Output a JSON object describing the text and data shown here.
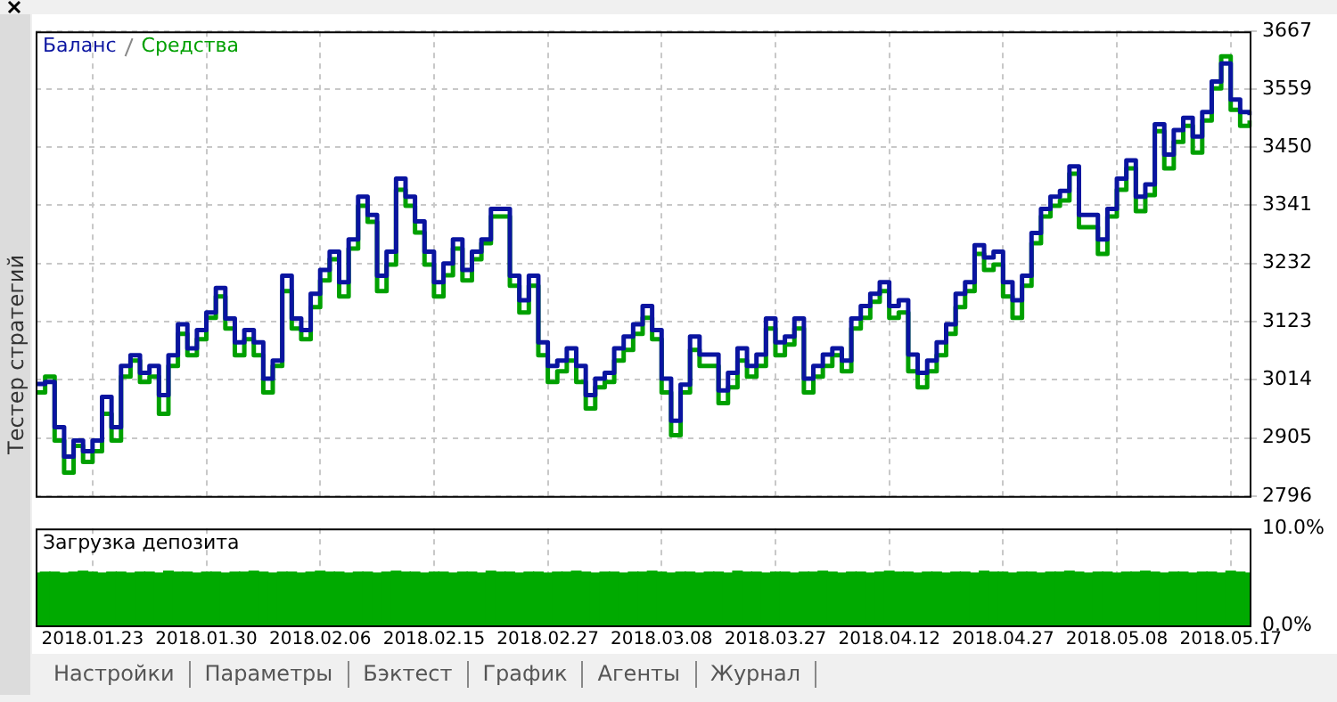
{
  "chart_data": [
    {
      "type": "step",
      "legend": "top left",
      "grid": true,
      "tick_labels": "y",
      "categories": [
        null,
        null,
        null,
        null,
        null,
        null,
        "2018.01.23",
        null,
        null,
        null,
        null,
        null,
        null,
        null,
        null,
        null,
        null,
        null,
        "2018.01.30",
        null,
        null,
        null,
        null,
        null,
        null,
        null,
        null,
        null,
        null,
        null,
        "2018.02.06",
        null,
        null,
        null,
        null,
        null,
        null,
        null,
        null,
        null,
        null,
        null,
        "2018.02.15",
        null,
        null,
        null,
        null,
        null,
        null,
        null,
        null,
        null,
        null,
        null,
        "2018.02.27",
        null,
        null,
        null,
        null,
        null,
        null,
        null,
        null,
        null,
        null,
        null,
        "2018.03.08",
        null,
        null,
        null,
        null,
        null,
        null,
        null,
        null,
        null,
        null,
        null,
        "2018.03.27",
        null,
        null,
        null,
        null,
        null,
        null,
        null,
        null,
        null,
        null,
        null,
        "2018.04.12",
        null,
        null,
        null,
        null,
        null,
        null,
        null,
        null,
        null,
        null,
        null,
        "2018.04.27",
        null,
        null,
        null,
        null,
        null,
        null,
        null,
        null,
        null,
        null,
        null,
        "2018.05.08",
        null,
        null,
        null,
        null,
        null,
        null,
        null,
        null,
        null,
        null,
        null,
        "2018.05.17",
        null,
        null
      ],
      "ylim": [
        2796,
        3667
      ],
      "yticks": [
        2796,
        2905,
        3014,
        3123,
        3232,
        3341,
        3450,
        3559,
        3667
      ],
      "series": [
        {
          "name": "Баланс",
          "color": "#0a14a0",
          "values": [
            3006,
            3010,
            2925,
            2870,
            2900,
            2880,
            2900,
            2982,
            2925,
            3040,
            3060,
            3027,
            3040,
            2985,
            3060,
            3118,
            3073,
            3107,
            3140,
            3186,
            3129,
            3084,
            3107,
            3084,
            3016,
            3050,
            3209,
            3129,
            3107,
            3175,
            3220,
            3254,
            3197,
            3277,
            3357,
            3323,
            3209,
            3254,
            3391,
            3357,
            3311,
            3254,
            3197,
            3232,
            3277,
            3220,
            3254,
            3277,
            3334,
            3334,
            3209,
            3163,
            3209,
            3084,
            3040,
            3050,
            3073,
            3040,
            2985,
            3016,
            3027,
            3073,
            3095,
            3118,
            3152,
            3107,
            3016,
            2937,
            3005,
            3095,
            3061,
            3061,
            2994,
            3027,
            3073,
            3040,
            3061,
            3129,
            3084,
            3095,
            3129,
            3016,
            3040,
            3061,
            3073,
            3050,
            3129,
            3152,
            3175,
            3197,
            3152,
            3163,
            3061,
            3027,
            3050,
            3084,
            3118,
            3175,
            3197,
            3266,
            3243,
            3254,
            3197,
            3163,
            3209,
            3289,
            3334,
            3357,
            3368,
            3414,
            3323,
            3323,
            3277,
            3334,
            3391,
            3425,
            3357,
            3380,
            3493,
            3436,
            3482,
            3505,
            3470,
            3516,
            3573,
            3607,
            3539,
            3516,
            3510
          ]
        },
        {
          "name": "Средства",
          "color": "#00a000",
          "values": [
            2990,
            3020,
            2900,
            2840,
            2890,
            2860,
            2880,
            2950,
            2900,
            3020,
            3050,
            3010,
            3020,
            2950,
            3040,
            3100,
            3060,
            3090,
            3130,
            3170,
            3110,
            3060,
            3090,
            3060,
            2990,
            3040,
            3180,
            3110,
            3090,
            3150,
            3200,
            3240,
            3170,
            3260,
            3340,
            3310,
            3180,
            3230,
            3370,
            3340,
            3290,
            3230,
            3170,
            3210,
            3260,
            3200,
            3240,
            3270,
            3320,
            3320,
            3190,
            3140,
            3190,
            3060,
            3010,
            3030,
            3050,
            3010,
            2960,
            3000,
            3010,
            3050,
            3070,
            3100,
            3130,
            3090,
            2990,
            2910,
            2990,
            3070,
            3040,
            3040,
            2970,
            3000,
            3050,
            3020,
            3040,
            3110,
            3060,
            3080,
            3110,
            2990,
            3020,
            3040,
            3060,
            3030,
            3110,
            3130,
            3160,
            3180,
            3130,
            3140,
            3030,
            3000,
            3030,
            3060,
            3100,
            3150,
            3180,
            3250,
            3220,
            3230,
            3170,
            3130,
            3190,
            3270,
            3320,
            3340,
            3350,
            3400,
            3300,
            3300,
            3250,
            3320,
            3370,
            3410,
            3330,
            3360,
            3480,
            3410,
            3460,
            3490,
            3440,
            3500,
            3560,
            3620,
            3520,
            3490,
            3500
          ]
        }
      ]
    },
    {
      "type": "bar",
      "title": "Загрузка депозита",
      "grid": "x",
      "color": "#00aa00",
      "categories": [
        null,
        null,
        null,
        null,
        null,
        null,
        "2018.01.23",
        null,
        null,
        null,
        null,
        null,
        null,
        null,
        null,
        null,
        null,
        null,
        "2018.01.30",
        null,
        null,
        null,
        null,
        null,
        null,
        null,
        null,
        null,
        null,
        null,
        "2018.02.06",
        null,
        null,
        null,
        null,
        null,
        null,
        null,
        null,
        null,
        null,
        null,
        "2018.02.15",
        null,
        null,
        null,
        null,
        null,
        null,
        null,
        null,
        null,
        null,
        null,
        "2018.02.27",
        null,
        null,
        null,
        null,
        null,
        null,
        null,
        null,
        null,
        null,
        null,
        "2018.03.08",
        null,
        null,
        null,
        null,
        null,
        null,
        null,
        null,
        null,
        null,
        null,
        "2018.03.27",
        null,
        null,
        null,
        null,
        null,
        null,
        null,
        null,
        null,
        null,
        null,
        "2018.04.12",
        null,
        null,
        null,
        null,
        null,
        null,
        null,
        null,
        null,
        null,
        null,
        "2018.04.27",
        null,
        null,
        null,
        null,
        null,
        null,
        null,
        null,
        null,
        null,
        null,
        "2018.05.08",
        null,
        null,
        null,
        null,
        null,
        null,
        null,
        null,
        null,
        null,
        null,
        "2018.05.17",
        null,
        null
      ],
      "ylim": [
        0,
        10
      ],
      "yticks": [
        {
          "value": 0,
          "label": "0.0%"
        },
        {
          "value": 10,
          "label": "10.0%"
        }
      ],
      "values": [
        5.4,
        5.5,
        5.5,
        5.4,
        5.5,
        5.6,
        5.5,
        5.4,
        5.5,
        5.5,
        5.4,
        5.5,
        5.5,
        5.4,
        5.6,
        5.5,
        5.5,
        5.4,
        5.5,
        5.5,
        5.4,
        5.5,
        5.5,
        5.6,
        5.5,
        5.4,
        5.5,
        5.5,
        5.4,
        5.5,
        5.6,
        5.5,
        5.5,
        5.4,
        5.5,
        5.5,
        5.4,
        5.5,
        5.6,
        5.5,
        5.5,
        5.4,
        5.5,
        5.5,
        5.4,
        5.5,
        5.5,
        5.4,
        5.6,
        5.5,
        5.5,
        5.4,
        5.5,
        5.5,
        5.4,
        5.5,
        5.5,
        5.6,
        5.5,
        5.4,
        5.5,
        5.5,
        5.4,
        5.5,
        5.5,
        5.6,
        5.5,
        5.4,
        5.5,
        5.5,
        5.4,
        5.5,
        5.5,
        5.4,
        5.6,
        5.5,
        5.5,
        5.4,
        5.5,
        5.5,
        5.4,
        5.5,
        5.5,
        5.6,
        5.5,
        5.4,
        5.5,
        5.5,
        5.4,
        5.5,
        5.6,
        5.5,
        5.5,
        5.4,
        5.5,
        5.5,
        5.4,
        5.5,
        5.5,
        5.4,
        5.6,
        5.5,
        5.5,
        5.4,
        5.5,
        5.5,
        5.4,
        5.5,
        5.5,
        5.6,
        5.5,
        5.4,
        5.5,
        5.5,
        5.4,
        5.5,
        5.5,
        5.6,
        5.5,
        5.4,
        5.5,
        5.5,
        5.4,
        5.5,
        5.5,
        5.4,
        5.6,
        5.5,
        5.4
      ]
    },
    {
      "type": "other",
      "annotations": [
        "Тестер стратегий",
        "Настройки",
        "Параметры",
        "Бэктест",
        "График",
        "Агенты",
        "Журнал"
      ]
    }
  ]
}
